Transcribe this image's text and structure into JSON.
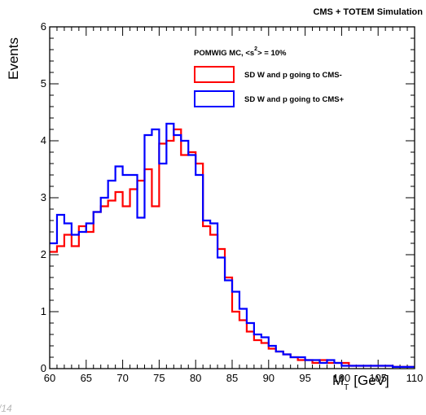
{
  "header": {
    "title": "CMS + TOTEM Simulation"
  },
  "footer": {
    "page_label": "/14"
  },
  "chart_data": {
    "type": "line",
    "step": true,
    "title": "CMS + TOTEM Simulation",
    "xlabel": "M_T [GeV]",
    "xlabel_main": "M",
    "xlabel_sub": "T",
    "xlabel_unit": "[GeV]",
    "ylabel": "Events",
    "xlim": [
      60,
      110
    ],
    "ylim": [
      0,
      6
    ],
    "bin_width": 1,
    "x_ticks": [
      60,
      65,
      70,
      75,
      80,
      85,
      90,
      95,
      100,
      105,
      110
    ],
    "x_tick_labels": [
      "60",
      "65",
      "70",
      "75",
      "80",
      "85",
      "90",
      "95",
      "100",
      "105",
      "110"
    ],
    "y_ticks": [
      0,
      1,
      2,
      3,
      4,
      5,
      6
    ],
    "y_tick_labels": [
      "0",
      "1",
      "2",
      "3",
      "4",
      "5",
      "6"
    ],
    "legend": {
      "header_main": "POMWIG MC, <s",
      "header_super": "2",
      "header_rest": "> = 10%",
      "position": "top-right"
    },
    "series": [
      {
        "name": "SD W and p going to CMS-",
        "color": "#ff0000",
        "x_edges_start": 60,
        "values": [
          2.05,
          2.15,
          2.35,
          2.15,
          2.5,
          2.4,
          2.75,
          2.85,
          2.95,
          3.1,
          2.85,
          3.15,
          3.3,
          3.5,
          2.85,
          3.95,
          4.0,
          4.2,
          3.75,
          3.8,
          3.6,
          2.5,
          2.35,
          2.1,
          1.6,
          1.0,
          0.85,
          0.65,
          0.5,
          0.45,
          0.35,
          0.3,
          0.25,
          0.2,
          0.15,
          0.15,
          0.1,
          0.15,
          0.1,
          0.1,
          0.1,
          0.05,
          0.05,
          0.05,
          0.05,
          0.05,
          0.05,
          0.03,
          0.03,
          0.03
        ]
      },
      {
        "name": "SD W and p going to CMS+",
        "color": "#0000ff",
        "x_edges_start": 60,
        "values": [
          2.2,
          2.7,
          2.55,
          2.35,
          2.4,
          2.55,
          2.75,
          3.0,
          3.3,
          3.55,
          3.4,
          3.4,
          2.65,
          4.1,
          4.2,
          3.6,
          4.3,
          4.1,
          4.0,
          3.75,
          3.4,
          2.6,
          2.55,
          1.95,
          1.55,
          1.35,
          1.05,
          0.8,
          0.6,
          0.55,
          0.4,
          0.3,
          0.25,
          0.2,
          0.2,
          0.15,
          0.15,
          0.1,
          0.15,
          0.1,
          0.05,
          0.05,
          0.05,
          0.05,
          0.05,
          0.05,
          0.05,
          0.03,
          0.03,
          0.03
        ]
      }
    ]
  }
}
